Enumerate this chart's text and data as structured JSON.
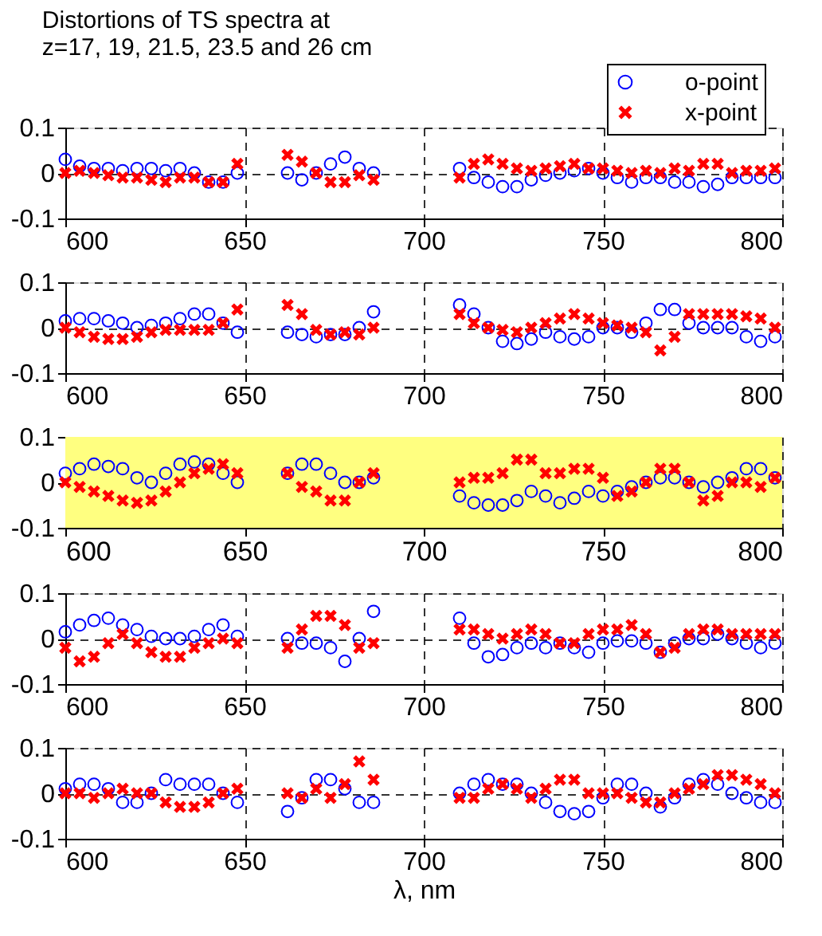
{
  "chart_data": [
    {
      "type": "scatter",
      "title": "Distortions of TS spectra at z=17, 19, 21.5, 23.5 and 26 cm",
      "legend": "top right",
      "grid": true,
      "x": [
        600,
        604,
        608,
        612,
        616,
        620,
        624,
        628,
        632,
        636,
        640,
        644,
        648,
        662,
        666,
        670,
        674,
        678,
        682,
        686,
        710,
        714,
        718,
        722,
        726,
        730,
        734,
        738,
        742,
        746,
        750,
        754,
        758,
        762,
        766,
        770,
        774,
        778,
        782,
        786,
        790,
        794,
        798
      ],
      "xlim": [
        600,
        800
      ],
      "xticks": [
        600,
        650,
        700,
        750,
        800
      ],
      "ylim": [
        -0.1,
        0.1
      ],
      "yticks": [
        -0.1,
        0,
        0.1
      ],
      "series": [
        {
          "name": "o-point",
          "color": "#0000ff",
          "marker": "circle",
          "values": [
            0.03,
            0.015,
            0.01,
            0.01,
            0.005,
            0.01,
            0.01,
            0.005,
            0.01,
            0.0,
            -0.02,
            -0.02,
            0.0,
            0.0,
            -0.015,
            0.0,
            0.02,
            0.035,
            0.01,
            0.0,
            0.01,
            -0.01,
            -0.02,
            -0.03,
            -0.03,
            -0.015,
            -0.005,
            0.0,
            0.005,
            0.01,
            0.0,
            -0.01,
            -0.02,
            -0.01,
            -0.01,
            -0.02,
            -0.02,
            -0.03,
            -0.025,
            -0.01,
            -0.01,
            -0.01,
            -0.01
          ]
        },
        {
          "name": "x-point",
          "color": "#ff0000",
          "marker": "cross",
          "values": [
            0.0,
            0.005,
            0.0,
            -0.005,
            -0.01,
            -0.01,
            -0.015,
            -0.02,
            -0.01,
            -0.01,
            -0.02,
            -0.02,
            0.02,
            0.04,
            0.025,
            0.0,
            -0.02,
            -0.02,
            -0.005,
            -0.015,
            -0.01,
            0.02,
            0.03,
            0.02,
            0.01,
            0.005,
            0.01,
            0.015,
            0.02,
            0.01,
            0.01,
            0.005,
            0.0,
            0.005,
            0.0,
            0.01,
            0.005,
            0.02,
            0.02,
            0.0,
            0.005,
            0.005,
            0.01
          ]
        }
      ]
    },
    {
      "type": "scatter",
      "grid": true,
      "x": [
        600,
        604,
        608,
        612,
        616,
        620,
        624,
        628,
        632,
        636,
        640,
        644,
        648,
        662,
        666,
        670,
        674,
        678,
        682,
        686,
        710,
        714,
        718,
        722,
        726,
        730,
        734,
        738,
        742,
        746,
        750,
        754,
        758,
        762,
        766,
        770,
        774,
        778,
        782,
        786,
        790,
        794,
        798
      ],
      "xlim": [
        600,
        800
      ],
      "xticks": [
        600,
        650,
        700,
        750,
        800
      ],
      "ylim": [
        -0.1,
        0.1
      ],
      "yticks": [
        -0.1,
        0,
        0.1
      ],
      "series": [
        {
          "color": "#0000ff",
          "marker": "circle",
          "values": [
            0.015,
            0.02,
            0.02,
            0.015,
            0.01,
            0.0,
            0.005,
            0.01,
            0.02,
            0.03,
            0.03,
            0.01,
            -0.01,
            -0.01,
            -0.015,
            -0.02,
            -0.015,
            -0.015,
            0.0,
            0.035,
            0.05,
            0.03,
            0.0,
            -0.03,
            -0.035,
            -0.025,
            -0.01,
            -0.02,
            -0.025,
            -0.02,
            0.0,
            0.0,
            -0.01,
            0.01,
            0.04,
            0.04,
            0.01,
            0.0,
            0.0,
            0.0,
            -0.02,
            -0.03,
            -0.02
          ]
        },
        {
          "color": "#ff0000",
          "marker": "cross",
          "values": [
            0.0,
            -0.01,
            -0.02,
            -0.025,
            -0.025,
            -0.02,
            -0.01,
            -0.005,
            -0.005,
            -0.005,
            -0.005,
            0.01,
            0.04,
            0.05,
            0.03,
            -0.005,
            -0.015,
            -0.01,
            -0.015,
            0.0,
            0.03,
            0.01,
            0.0,
            -0.005,
            -0.01,
            0.0,
            0.01,
            0.02,
            0.03,
            0.02,
            0.01,
            0.005,
            0.0,
            -0.01,
            -0.05,
            -0.02,
            0.03,
            0.03,
            0.03,
            0.03,
            0.025,
            0.02,
            0.0
          ]
        }
      ]
    },
    {
      "type": "scatter",
      "grid": true,
      "bands": [
        {
          "axis": "y",
          "from": -0.1,
          "to": 0.1,
          "color": "#ffff80"
        }
      ],
      "x": [
        600,
        604,
        608,
        612,
        616,
        620,
        624,
        628,
        632,
        636,
        640,
        644,
        648,
        662,
        666,
        670,
        674,
        678,
        682,
        686,
        710,
        714,
        718,
        722,
        726,
        730,
        734,
        738,
        742,
        746,
        750,
        754,
        758,
        762,
        766,
        770,
        774,
        778,
        782,
        786,
        790,
        794,
        798
      ],
      "xlim": [
        600,
        800
      ],
      "xticks": [
        600,
        650,
        700,
        750,
        800
      ],
      "ylim": [
        -0.1,
        0.1
      ],
      "yticks": [
        -0.1,
        0,
        0.1
      ],
      "series": [
        {
          "color": "#0000ff",
          "marker": "circle",
          "values": [
            0.02,
            0.03,
            0.04,
            0.035,
            0.03,
            0.01,
            0.0,
            0.02,
            0.04,
            0.045,
            0.04,
            0.02,
            0.0,
            0.02,
            0.04,
            0.04,
            0.02,
            0.0,
            0.0,
            0.01,
            -0.03,
            -0.045,
            -0.05,
            -0.05,
            -0.04,
            -0.02,
            -0.03,
            -0.045,
            -0.035,
            -0.02,
            -0.03,
            -0.02,
            -0.01,
            0.0,
            0.01,
            0.01,
            0.0,
            -0.01,
            0.0,
            0.01,
            0.03,
            0.03,
            0.01
          ]
        },
        {
          "color": "#ff0000",
          "marker": "cross",
          "values": [
            0.0,
            -0.01,
            -0.02,
            -0.03,
            -0.04,
            -0.045,
            -0.04,
            -0.02,
            0.0,
            0.02,
            0.03,
            0.04,
            0.02,
            0.02,
            -0.01,
            -0.02,
            -0.04,
            -0.04,
            0.0,
            0.02,
            0.0,
            0.01,
            0.01,
            0.02,
            0.05,
            0.05,
            0.02,
            0.02,
            0.03,
            0.03,
            0.01,
            -0.03,
            -0.02,
            0.0,
            0.03,
            0.03,
            0.0,
            -0.04,
            -0.03,
            0.0,
            0.0,
            -0.01,
            0.01
          ]
        }
      ]
    },
    {
      "type": "scatter",
      "grid": true,
      "x": [
        600,
        604,
        608,
        612,
        616,
        620,
        624,
        628,
        632,
        636,
        640,
        644,
        648,
        662,
        666,
        670,
        674,
        678,
        682,
        686,
        710,
        714,
        718,
        722,
        726,
        730,
        734,
        738,
        742,
        746,
        750,
        754,
        758,
        762,
        766,
        770,
        774,
        778,
        782,
        786,
        790,
        794,
        798
      ],
      "xlim": [
        600,
        800
      ],
      "xticks": [
        600,
        650,
        700,
        750,
        800
      ],
      "ylim": [
        -0.1,
        0.1
      ],
      "yticks": [
        -0.1,
        0,
        0.1
      ],
      "series": [
        {
          "color": "#0000ff",
          "marker": "circle",
          "values": [
            0.015,
            0.03,
            0.04,
            0.045,
            0.03,
            0.02,
            0.005,
            0.0,
            0.0,
            0.005,
            0.02,
            0.03,
            0.005,
            0.0,
            -0.01,
            -0.01,
            -0.02,
            -0.05,
            0.0,
            0.06,
            0.045,
            -0.01,
            -0.04,
            -0.035,
            -0.02,
            -0.01,
            -0.02,
            -0.01,
            -0.02,
            -0.03,
            -0.01,
            -0.005,
            -0.005,
            -0.01,
            -0.03,
            -0.01,
            0.0,
            0.0,
            0.01,
            0.0,
            -0.01,
            -0.02,
            -0.01
          ]
        },
        {
          "color": "#ff0000",
          "marker": "cross",
          "values": [
            -0.02,
            -0.05,
            -0.04,
            -0.01,
            0.01,
            -0.01,
            -0.03,
            -0.04,
            -0.04,
            -0.02,
            -0.01,
            0.0,
            -0.01,
            -0.02,
            0.02,
            0.05,
            0.05,
            0.03,
            -0.02,
            -0.01,
            0.02,
            0.02,
            0.01,
            0.0,
            0.01,
            0.02,
            0.01,
            -0.01,
            -0.01,
            0.01,
            0.02,
            0.02,
            0.03,
            0.01,
            -0.03,
            -0.02,
            0.01,
            0.02,
            0.02,
            0.01,
            0.01,
            0.01,
            0.01
          ]
        }
      ]
    },
    {
      "type": "scatter",
      "grid": true,
      "xlabel": "λ, nm",
      "x": [
        600,
        604,
        608,
        612,
        616,
        620,
        624,
        628,
        632,
        636,
        640,
        644,
        648,
        662,
        666,
        670,
        674,
        678,
        682,
        686,
        710,
        714,
        718,
        722,
        726,
        730,
        734,
        738,
        742,
        746,
        750,
        754,
        758,
        762,
        766,
        770,
        774,
        778,
        782,
        786,
        790,
        794,
        798
      ],
      "xlim": [
        600,
        800
      ],
      "xticks": [
        600,
        650,
        700,
        750,
        800
      ],
      "ylim": [
        -0.1,
        0.1
      ],
      "yticks": [
        -0.1,
        0,
        0.1
      ],
      "series": [
        {
          "color": "#0000ff",
          "marker": "circle",
          "values": [
            0.01,
            0.02,
            0.02,
            0.01,
            -0.02,
            -0.02,
            0.0,
            0.03,
            0.02,
            0.02,
            0.02,
            0.0,
            -0.02,
            -0.04,
            -0.01,
            0.03,
            0.03,
            0.01,
            -0.02,
            -0.02,
            0.0,
            0.02,
            0.03,
            0.02,
            0.02,
            0.0,
            -0.02,
            -0.04,
            -0.045,
            -0.04,
            -0.01,
            0.02,
            0.02,
            0.0,
            -0.03,
            -0.01,
            0.02,
            0.03,
            0.02,
            0.0,
            -0.01,
            -0.02,
            -0.02
          ]
        },
        {
          "color": "#ff0000",
          "marker": "cross",
          "values": [
            0.0,
            0.0,
            -0.01,
            0.0,
            0.01,
            0.0,
            0.0,
            -0.02,
            -0.03,
            -0.03,
            -0.02,
            0.0,
            0.01,
            0.0,
            -0.01,
            0.01,
            -0.01,
            0.02,
            0.07,
            0.03,
            -0.01,
            -0.01,
            0.01,
            0.02,
            0.01,
            -0.01,
            0.01,
            0.03,
            0.03,
            0.0,
            0.0,
            0.0,
            -0.01,
            -0.02,
            -0.02,
            0.0,
            0.01,
            0.02,
            0.04,
            0.04,
            0.03,
            0.02,
            0.0
          ]
        }
      ]
    }
  ]
}
